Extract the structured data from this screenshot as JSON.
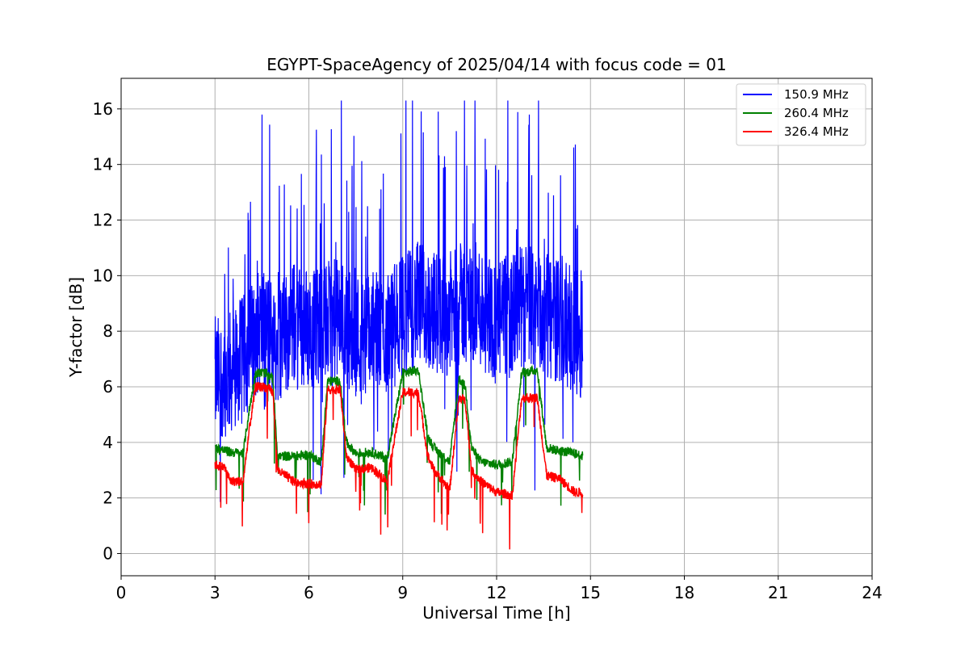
{
  "chart_data": {
    "type": "line",
    "title": "EGYPT-SpaceAgency of 2025/04/14 with focus code = 01",
    "xlabel": "Universal Time [h]",
    "ylabel": "Y-factor [dB]",
    "xlim": [
      0,
      24
    ],
    "ylim": [
      -0.8,
      17.1
    ],
    "xticks": [
      0,
      3,
      6,
      9,
      12,
      15,
      18,
      21,
      24
    ],
    "yticks": [
      0,
      2,
      4,
      6,
      8,
      10,
      12,
      14,
      16
    ],
    "grid": true,
    "legend_position": "top-right",
    "data_extent_hours": [
      3.0,
      14.75
    ],
    "series": [
      {
        "name": "150.9 MHz",
        "color": "#0000ff",
        "summary": {
          "typical_min": 5.0,
          "typical_max": 12.0,
          "peak": 16.3
        },
        "values": [
          {
            "x": 3.0,
            "y": 6.3
          },
          {
            "x": 3.5,
            "y": 6.5
          },
          {
            "x": 4.0,
            "y": 7.2
          },
          {
            "x": 4.5,
            "y": 8.2
          },
          {
            "x": 5.0,
            "y": 7.6
          },
          {
            "x": 5.5,
            "y": 8.3
          },
          {
            "x": 6.0,
            "y": 8.1
          },
          {
            "x": 6.5,
            "y": 8.3
          },
          {
            "x": 7.0,
            "y": 8.4
          },
          {
            "x": 7.5,
            "y": 7.9
          },
          {
            "x": 8.0,
            "y": 8.0
          },
          {
            "x": 8.5,
            "y": 7.9
          },
          {
            "x": 9.0,
            "y": 8.6
          },
          {
            "x": 9.5,
            "y": 9.0
          },
          {
            "x": 10.0,
            "y": 8.7
          },
          {
            "x": 10.5,
            "y": 8.6
          },
          {
            "x": 11.0,
            "y": 9.1
          },
          {
            "x": 11.5,
            "y": 8.9
          },
          {
            "x": 12.0,
            "y": 8.3
          },
          {
            "x": 12.5,
            "y": 8.6
          },
          {
            "x": 13.0,
            "y": 9.0
          },
          {
            "x": 13.5,
            "y": 8.5
          },
          {
            "x": 14.0,
            "y": 8.4
          },
          {
            "x": 14.5,
            "y": 8.0
          },
          {
            "x": 14.75,
            "y": 7.8
          }
        ]
      },
      {
        "name": "260.4 MHz",
        "color": "#008000",
        "values": [
          {
            "x": 3.0,
            "y": 3.8
          },
          {
            "x": 3.5,
            "y": 3.65
          },
          {
            "x": 3.9,
            "y": 3.6
          },
          {
            "x": 4.1,
            "y": 5.2
          },
          {
            "x": 4.3,
            "y": 6.5
          },
          {
            "x": 4.6,
            "y": 6.5
          },
          {
            "x": 4.85,
            "y": 6.3
          },
          {
            "x": 5.0,
            "y": 3.5
          },
          {
            "x": 5.5,
            "y": 3.5
          },
          {
            "x": 6.0,
            "y": 3.55
          },
          {
            "x": 6.4,
            "y": 3.3
          },
          {
            "x": 6.6,
            "y": 6.2
          },
          {
            "x": 7.0,
            "y": 6.2
          },
          {
            "x": 7.2,
            "y": 4.0
          },
          {
            "x": 7.5,
            "y": 3.6
          },
          {
            "x": 8.0,
            "y": 3.65
          },
          {
            "x": 8.5,
            "y": 3.4
          },
          {
            "x": 9.0,
            "y": 6.5
          },
          {
            "x": 9.5,
            "y": 6.6
          },
          {
            "x": 9.8,
            "y": 4.2
          },
          {
            "x": 10.0,
            "y": 3.8
          },
          {
            "x": 10.5,
            "y": 3.3
          },
          {
            "x": 10.8,
            "y": 6.3
          },
          {
            "x": 11.0,
            "y": 6.0
          },
          {
            "x": 11.2,
            "y": 3.8
          },
          {
            "x": 11.5,
            "y": 3.3
          },
          {
            "x": 12.0,
            "y": 3.2
          },
          {
            "x": 12.5,
            "y": 3.3
          },
          {
            "x": 12.8,
            "y": 6.5
          },
          {
            "x": 13.3,
            "y": 6.6
          },
          {
            "x": 13.6,
            "y": 3.8
          },
          {
            "x": 14.0,
            "y": 3.7
          },
          {
            "x": 14.5,
            "y": 3.6
          },
          {
            "x": 14.75,
            "y": 3.5
          }
        ]
      },
      {
        "name": "326.4 MHz",
        "color": "#ff0000",
        "values": [
          {
            "x": 3.0,
            "y": 3.2
          },
          {
            "x": 3.3,
            "y": 3.1
          },
          {
            "x": 3.5,
            "y": 2.6
          },
          {
            "x": 3.9,
            "y": 2.6
          },
          {
            "x": 4.1,
            "y": 4.5
          },
          {
            "x": 4.3,
            "y": 6.0
          },
          {
            "x": 4.6,
            "y": 6.0
          },
          {
            "x": 4.85,
            "y": 5.8
          },
          {
            "x": 5.0,
            "y": 3.0
          },
          {
            "x": 5.5,
            "y": 2.6
          },
          {
            "x": 6.0,
            "y": 2.5
          },
          {
            "x": 6.4,
            "y": 2.5
          },
          {
            "x": 6.6,
            "y": 5.9
          },
          {
            "x": 7.0,
            "y": 5.9
          },
          {
            "x": 7.2,
            "y": 3.5
          },
          {
            "x": 7.5,
            "y": 3.0
          },
          {
            "x": 8.0,
            "y": 3.1
          },
          {
            "x": 8.5,
            "y": 2.6
          },
          {
            "x": 9.0,
            "y": 5.8
          },
          {
            "x": 9.5,
            "y": 5.8
          },
          {
            "x": 9.8,
            "y": 3.5
          },
          {
            "x": 10.0,
            "y": 3.0
          },
          {
            "x": 10.5,
            "y": 2.3
          },
          {
            "x": 10.8,
            "y": 5.6
          },
          {
            "x": 11.0,
            "y": 5.5
          },
          {
            "x": 11.2,
            "y": 3.0
          },
          {
            "x": 11.5,
            "y": 2.6
          },
          {
            "x": 12.0,
            "y": 2.2
          },
          {
            "x": 12.5,
            "y": 2.1
          },
          {
            "x": 12.8,
            "y": 5.6
          },
          {
            "x": 13.3,
            "y": 5.6
          },
          {
            "x": 13.6,
            "y": 2.8
          },
          {
            "x": 14.0,
            "y": 2.7
          },
          {
            "x": 14.5,
            "y": 2.2
          },
          {
            "x": 14.75,
            "y": 2.2
          }
        ]
      }
    ]
  }
}
